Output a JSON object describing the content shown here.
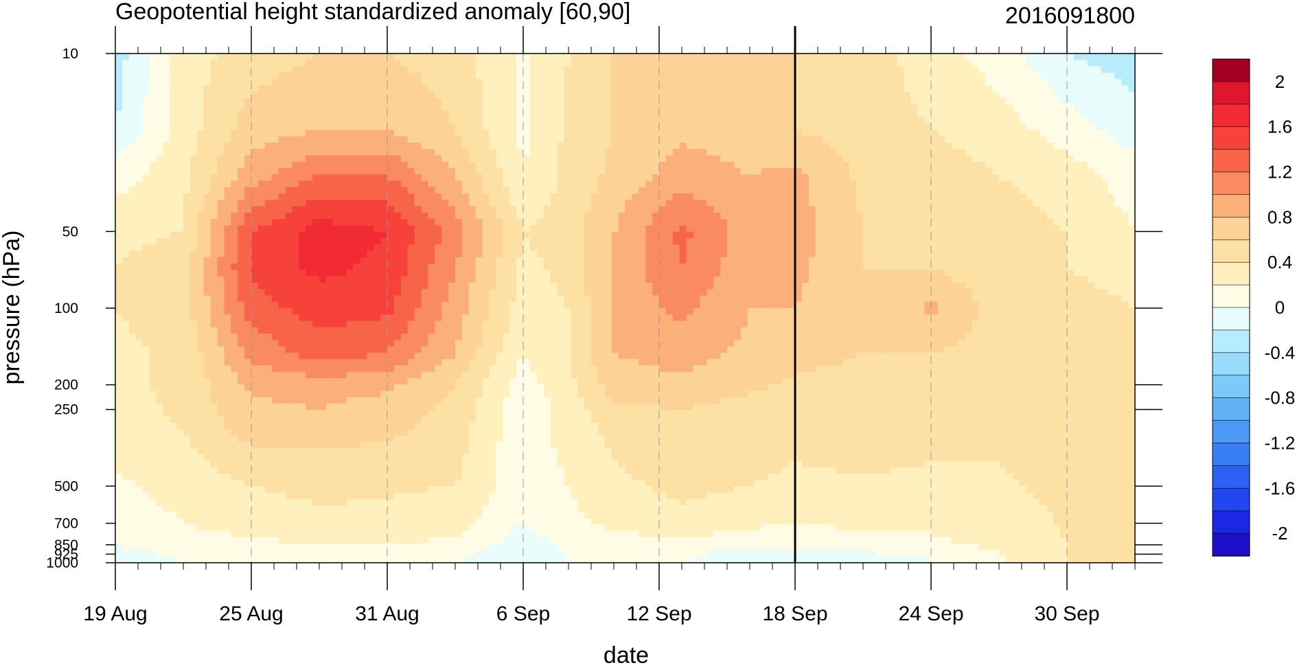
{
  "chart_data": {
    "type": "heatmap",
    "title": "Geopotential height standardized anomaly [60,90]",
    "right_title": "2016091800",
    "xlabel": "date",
    "ylabel": "pressure (hPa)",
    "y_scale": "log",
    "y_reversed": true,
    "ylim": [
      1000,
      10
    ],
    "xlim": [
      "2016-08-19",
      "2016-10-03"
    ],
    "x_ticks": [
      {
        "date": "2016-08-19",
        "label": "19 Aug"
      },
      {
        "date": "2016-08-25",
        "label": "25 Aug"
      },
      {
        "date": "2016-08-31",
        "label": "31 Aug"
      },
      {
        "date": "2016-09-06",
        "label": "6 Sep"
      },
      {
        "date": "2016-09-12",
        "label": "12 Sep"
      },
      {
        "date": "2016-09-18",
        "label": "18 Sep"
      },
      {
        "date": "2016-09-24",
        "label": "24 Sep"
      },
      {
        "date": "2016-09-30",
        "label": "30 Sep"
      }
    ],
    "y_ticks": [
      {
        "value": 10,
        "label": "10"
      },
      {
        "value": 50,
        "label": "50"
      },
      {
        "value": 100,
        "label": "100"
      },
      {
        "value": 200,
        "label": "200"
      },
      {
        "value": 250,
        "label": "250"
      },
      {
        "value": 500,
        "label": "500"
      },
      {
        "value": 700,
        "label": "700"
      },
      {
        "value": 850,
        "label": "850"
      },
      {
        "value": 925,
        "label": "925"
      },
      {
        "value": 1000,
        "label": "1000"
      }
    ],
    "vertical_marker_date": "2016-09-18",
    "dates": [
      "2016-08-19",
      "2016-08-22",
      "2016-08-25",
      "2016-08-28",
      "2016-08-31",
      "2016-09-03",
      "2016-09-06",
      "2016-09-08",
      "2016-09-10",
      "2016-09-13",
      "2016-09-16",
      "2016-09-18",
      "2016-09-21",
      "2016-09-24",
      "2016-09-27",
      "2016-09-30",
      "2016-10-03"
    ],
    "levels": [
      10,
      20,
      30,
      50,
      70,
      100,
      150,
      200,
      250,
      300,
      400,
      500,
      700,
      850,
      925,
      1000
    ],
    "values": [
      [
        -0.3,
        0.3,
        0.5,
        0.6,
        0.6,
        0.5,
        0.15,
        0.4,
        0.6,
        0.6,
        0.6,
        0.6,
        0.5,
        0.3,
        0.1,
        -0.2,
        -0.3
      ],
      [
        -0.2,
        0.3,
        0.7,
        0.8,
        0.8,
        0.6,
        0.15,
        0.45,
        0.6,
        0.75,
        0.7,
        0.6,
        0.5,
        0.4,
        0.3,
        0.1,
        -0.1
      ],
      [
        0.1,
        0.35,
        0.9,
        1.2,
        1.2,
        0.8,
        0.2,
        0.45,
        0.65,
        0.9,
        0.8,
        0.85,
        0.55,
        0.5,
        0.4,
        0.3,
        0.1
      ],
      [
        0.35,
        0.4,
        1.4,
        1.7,
        1.6,
        1.1,
        0.4,
        0.5,
        0.8,
        1.25,
        0.9,
        0.9,
        0.6,
        0.55,
        0.5,
        0.4,
        0.2
      ],
      [
        0.4,
        0.5,
        1.45,
        1.65,
        1.55,
        1.0,
        0.35,
        0.45,
        0.85,
        1.2,
        0.85,
        0.85,
        0.6,
        0.6,
        0.45,
        0.4,
        0.35
      ],
      [
        0.4,
        0.5,
        1.3,
        1.5,
        1.45,
        0.9,
        0.3,
        0.4,
        0.85,
        1.05,
        0.8,
        0.8,
        0.6,
        0.85,
        0.5,
        0.45,
        0.4
      ],
      [
        0.35,
        0.45,
        1.05,
        1.3,
        1.2,
        0.8,
        0.2,
        0.4,
        0.8,
        0.9,
        0.75,
        0.7,
        0.6,
        0.6,
        0.5,
        0.45,
        0.4
      ],
      [
        0.35,
        0.45,
        0.85,
        0.9,
        0.85,
        0.6,
        0.1,
        0.35,
        0.7,
        0.75,
        0.65,
        0.55,
        0.5,
        0.5,
        0.45,
        0.45,
        0.4
      ],
      [
        0.3,
        0.45,
        0.75,
        0.8,
        0.7,
        0.55,
        0.05,
        0.3,
        0.55,
        0.6,
        0.5,
        0.5,
        0.5,
        0.45,
        0.45,
        0.45,
        0.4
      ],
      [
        0.3,
        0.4,
        0.7,
        0.7,
        0.65,
        0.5,
        0.05,
        0.3,
        0.45,
        0.55,
        0.5,
        0.45,
        0.5,
        0.4,
        0.45,
        0.45,
        0.4
      ],
      [
        0.25,
        0.35,
        0.5,
        0.55,
        0.5,
        0.45,
        0.05,
        0.25,
        0.4,
        0.5,
        0.45,
        0.4,
        0.45,
        0.4,
        0.4,
        0.45,
        0.4
      ],
      [
        0.15,
        0.3,
        0.4,
        0.45,
        0.42,
        0.4,
        0.05,
        0.2,
        0.35,
        0.45,
        0.4,
        0.35,
        0.35,
        0.35,
        0.38,
        0.45,
        0.4
      ],
      [
        0.05,
        0.2,
        0.3,
        0.35,
        0.35,
        0.3,
        0.0,
        0.15,
        0.25,
        0.35,
        0.25,
        0.2,
        0.25,
        0.25,
        0.3,
        0.42,
        0.4
      ],
      [
        0.0,
        0.1,
        0.15,
        0.2,
        0.2,
        0.15,
        -0.1,
        0.05,
        0.1,
        0.15,
        0.05,
        0.05,
        0.1,
        0.15,
        0.25,
        0.4,
        0.4
      ],
      [
        -0.05,
        0.02,
        0.05,
        0.05,
        0.1,
        0.05,
        -0.15,
        0.0,
        0.05,
        0.05,
        -0.1,
        -0.05,
        -0.02,
        0.02,
        0.2,
        0.4,
        0.4
      ],
      [
        -0.05,
        0.0,
        0.02,
        0.05,
        0.05,
        0.0,
        -0.1,
        0.0,
        0.0,
        0.0,
        -0.15,
        -0.15,
        -0.05,
        -0.02,
        0.15,
        0.4,
        0.4
      ]
    ],
    "colorbar": {
      "levels": [
        -2.2,
        -2.0,
        -1.8,
        -1.6,
        -1.4,
        -1.2,
        -1.0,
        -0.8,
        -0.6,
        -0.4,
        -0.2,
        0.0,
        0.2,
        0.4,
        0.6,
        0.8,
        1.0,
        1.2,
        1.4,
        1.6,
        1.8,
        2.0,
        2.2
      ],
      "colors": [
        "#1e10c8",
        "#1e26e6",
        "#2246f2",
        "#2c62f4",
        "#3a7ef4",
        "#4c98f4",
        "#62b0f6",
        "#7ccaf8",
        "#98dcfa",
        "#b6ecfc",
        "#e8fcfc",
        "#fffce6",
        "#fff0be",
        "#fde0a4",
        "#fdd296",
        "#fbb07a",
        "#fa8a60",
        "#f86448",
        "#f6423a",
        "#f22a34",
        "#e0162e",
        "#a40022"
      ],
      "label_values": [
        {
          "value": 2.0,
          "label": "2"
        },
        {
          "value": 1.6,
          "label": "1.6"
        },
        {
          "value": 1.2,
          "label": "1.2"
        },
        {
          "value": 0.8,
          "label": "0.8"
        },
        {
          "value": 0.4,
          "label": "0.4"
        },
        {
          "value": 0.0,
          "label": "0"
        },
        {
          "value": -0.4,
          "label": "-0.4"
        },
        {
          "value": -0.8,
          "label": "-0.8"
        },
        {
          "value": -1.2,
          "label": "-1.2"
        },
        {
          "value": -1.6,
          "label": "-1.6"
        },
        {
          "value": -2.0,
          "label": "-2"
        }
      ]
    }
  }
}
